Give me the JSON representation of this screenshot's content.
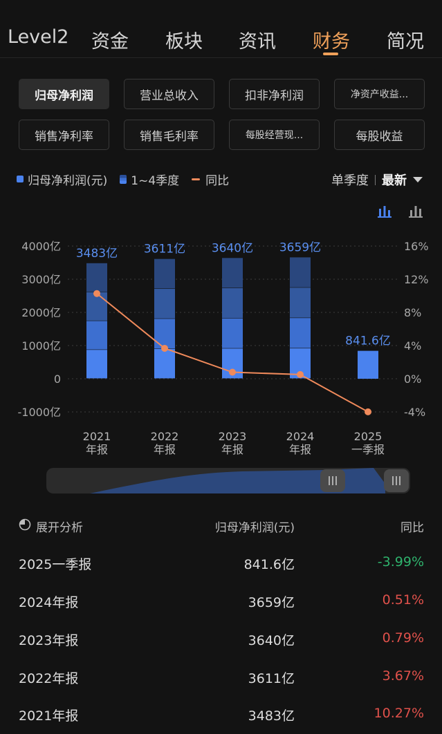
{
  "top_tabs": [
    {
      "label": "Level2",
      "active": false
    },
    {
      "label": "资金",
      "active": false
    },
    {
      "label": "板块",
      "active": false
    },
    {
      "label": "资讯",
      "active": false
    },
    {
      "label": "财务",
      "active": true
    },
    {
      "label": "简况",
      "active": false
    }
  ],
  "metric_buttons": [
    {
      "label": "归母净利润",
      "active": true
    },
    {
      "label": "营业总收入",
      "active": false
    },
    {
      "label": "扣非净利润",
      "active": false
    },
    {
      "label": "净资产收益...",
      "active": false
    },
    {
      "label": "销售净利率",
      "active": false
    },
    {
      "label": "销售毛利率",
      "active": false
    },
    {
      "label": "每股经营现...",
      "active": false
    },
    {
      "label": "每股收益",
      "active": false
    }
  ],
  "legend": {
    "net_profit": "归母净利润(元)",
    "quarters": "1~4季度",
    "yoy": "同比"
  },
  "period": {
    "mode": "单季度",
    "selection": "最新"
  },
  "colors": {
    "accent": "#f0a15a",
    "bar": "#4a82ee",
    "line": "#f08a5b",
    "negative": "#2fb36d",
    "positive": "#e0514b"
  },
  "chart_data": {
    "type": "bar",
    "categories": [
      "2021年报",
      "2022年报",
      "2023年报",
      "2024年报",
      "2025一季报"
    ],
    "category_lines": [
      [
        "2021",
        "年报"
      ],
      [
        "2022",
        "年报"
      ],
      [
        "2023",
        "年报"
      ],
      [
        "2024",
        "年报"
      ],
      [
        "2025",
        "一季报"
      ]
    ],
    "series": [
      {
        "name": "归母净利润(元)",
        "unit": "亿",
        "values": [
          3483,
          3611,
          3640,
          3659,
          841.6
        ],
        "stacked_quarters": true
      },
      {
        "name": "同比",
        "unit": "%",
        "values": [
          10.27,
          3.67,
          0.79,
          0.51,
          -3.99
        ],
        "axis": "right"
      }
    ],
    "bar_labels": [
      "3483亿",
      "3611亿",
      "3640亿",
      "3659亿",
      "841.6亿"
    ],
    "y_left": {
      "ticks": [
        4000,
        3000,
        2000,
        1000,
        0,
        -1000
      ],
      "tick_labels": [
        "4000亿",
        "3000亿",
        "2000亿",
        "1000亿",
        "0",
        "-1000亿"
      ],
      "range": [
        -1000,
        4000
      ]
    },
    "y_right": {
      "ticks": [
        16,
        12,
        8,
        4,
        0,
        -4
      ],
      "tick_labels": [
        "16%",
        "12%",
        "8%",
        "4%",
        "0%",
        "-4%"
      ],
      "range": [
        -4,
        16
      ]
    },
    "grid": "dotted"
  },
  "table": {
    "expand_label": "展开分析",
    "col2_header": "归母净利润(元)",
    "col3_header": "同比",
    "rows": [
      {
        "period": "2025一季报",
        "value": "841.6亿",
        "yoy": "-3.99%",
        "sign": "neg"
      },
      {
        "period": "2024年报",
        "value": "3659亿",
        "yoy": "0.51%",
        "sign": "pos"
      },
      {
        "period": "2023年报",
        "value": "3640亿",
        "yoy": "0.79%",
        "sign": "pos"
      },
      {
        "period": "2022年报",
        "value": "3611亿",
        "yoy": "3.67%",
        "sign": "pos"
      },
      {
        "period": "2021年报",
        "value": "3483亿",
        "yoy": "10.27%",
        "sign": "pos"
      }
    ]
  }
}
